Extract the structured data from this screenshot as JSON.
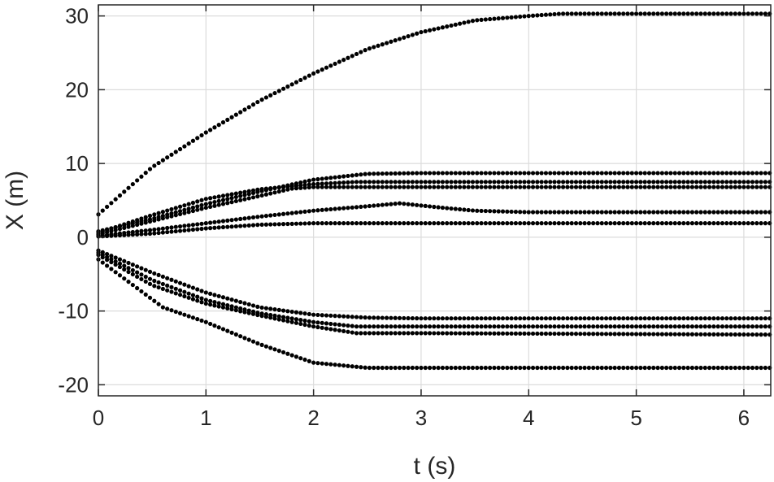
{
  "chart_data": {
    "type": "scatter",
    "title": "",
    "xlabel": "t (s)",
    "ylabel": "X (m)",
    "xlim": [
      0,
      6.25
    ],
    "ylim": [
      -21.5,
      31.5
    ],
    "xticks": [
      0,
      1,
      2,
      3,
      4,
      5,
      6
    ],
    "yticks": [
      -20,
      -10,
      0,
      10,
      20,
      30
    ],
    "grid": true,
    "marker": "dot",
    "marker_color": "#000000",
    "sample_dt": 0.04,
    "series": [
      {
        "points": [
          [
            0,
            3.1
          ],
          [
            0.5,
            9.5
          ],
          [
            1.0,
            14.2
          ],
          [
            1.5,
            18.5
          ],
          [
            2.0,
            22.2
          ],
          [
            2.5,
            25.5
          ],
          [
            3.0,
            27.8
          ],
          [
            3.5,
            29.4
          ],
          [
            4.0,
            30.0
          ],
          [
            4.3,
            30.3
          ],
          [
            6.25,
            30.3
          ]
        ]
      },
      {
        "points": [
          [
            0,
            0.8
          ],
          [
            0.5,
            2.5
          ],
          [
            1.0,
            4.5
          ],
          [
            1.5,
            6.2
          ],
          [
            2.0,
            7.8
          ],
          [
            2.5,
            8.6
          ],
          [
            3.0,
            8.7
          ],
          [
            6.25,
            8.7
          ]
        ]
      },
      {
        "points": [
          [
            0,
            0.6
          ],
          [
            0.5,
            3.0
          ],
          [
            1.0,
            5.2
          ],
          [
            1.5,
            6.5
          ],
          [
            2.0,
            7.2
          ],
          [
            2.4,
            7.5
          ],
          [
            6.25,
            7.5
          ]
        ]
      },
      {
        "points": [
          [
            0,
            0.4
          ],
          [
            0.5,
            2.2
          ],
          [
            1.0,
            4.0
          ],
          [
            1.5,
            5.6
          ],
          [
            1.8,
            6.6
          ],
          [
            2.0,
            6.8
          ],
          [
            6.25,
            6.8
          ]
        ]
      },
      {
        "points": [
          [
            0,
            0.2
          ],
          [
            0.5,
            1.0
          ],
          [
            1.0,
            1.9
          ],
          [
            1.5,
            2.8
          ],
          [
            2.0,
            3.6
          ],
          [
            2.5,
            4.2
          ],
          [
            2.8,
            4.6
          ],
          [
            3.2,
            4.0
          ],
          [
            3.5,
            3.6
          ],
          [
            4.0,
            3.4
          ],
          [
            6.25,
            3.4
          ]
        ]
      },
      {
        "points": [
          [
            0,
            0.1
          ],
          [
            0.5,
            0.5
          ],
          [
            1.0,
            1.2
          ],
          [
            1.5,
            1.7
          ],
          [
            2.0,
            1.9
          ],
          [
            6.25,
            1.9
          ]
        ]
      },
      {
        "points": [
          [
            0,
            -1.8
          ],
          [
            0.5,
            -4.8
          ],
          [
            1.0,
            -7.5
          ],
          [
            1.5,
            -9.5
          ],
          [
            2.0,
            -10.5
          ],
          [
            2.5,
            -10.9
          ],
          [
            3.0,
            -11.0
          ],
          [
            6.25,
            -11.0
          ]
        ]
      },
      {
        "points": [
          [
            0,
            -2.1
          ],
          [
            0.5,
            -5.8
          ],
          [
            1.0,
            -8.5
          ],
          [
            1.5,
            -10.3
          ],
          [
            2.0,
            -11.5
          ],
          [
            2.4,
            -12.1
          ],
          [
            2.8,
            -12.1
          ],
          [
            6.25,
            -12.1
          ]
        ]
      },
      {
        "points": [
          [
            0,
            -2.4
          ],
          [
            0.5,
            -6.5
          ],
          [
            1.0,
            -9.0
          ],
          [
            1.5,
            -10.6
          ],
          [
            2.0,
            -12.1
          ],
          [
            2.4,
            -13.0
          ],
          [
            3.0,
            -13.0
          ],
          [
            6.25,
            -13.2
          ]
        ]
      },
      {
        "points": [
          [
            0,
            -3.0
          ],
          [
            0.6,
            -9.5
          ],
          [
            1.0,
            -11.5
          ],
          [
            1.5,
            -14.5
          ],
          [
            2.0,
            -17.0
          ],
          [
            2.5,
            -17.7
          ],
          [
            6.25,
            -17.7
          ]
        ]
      }
    ]
  }
}
